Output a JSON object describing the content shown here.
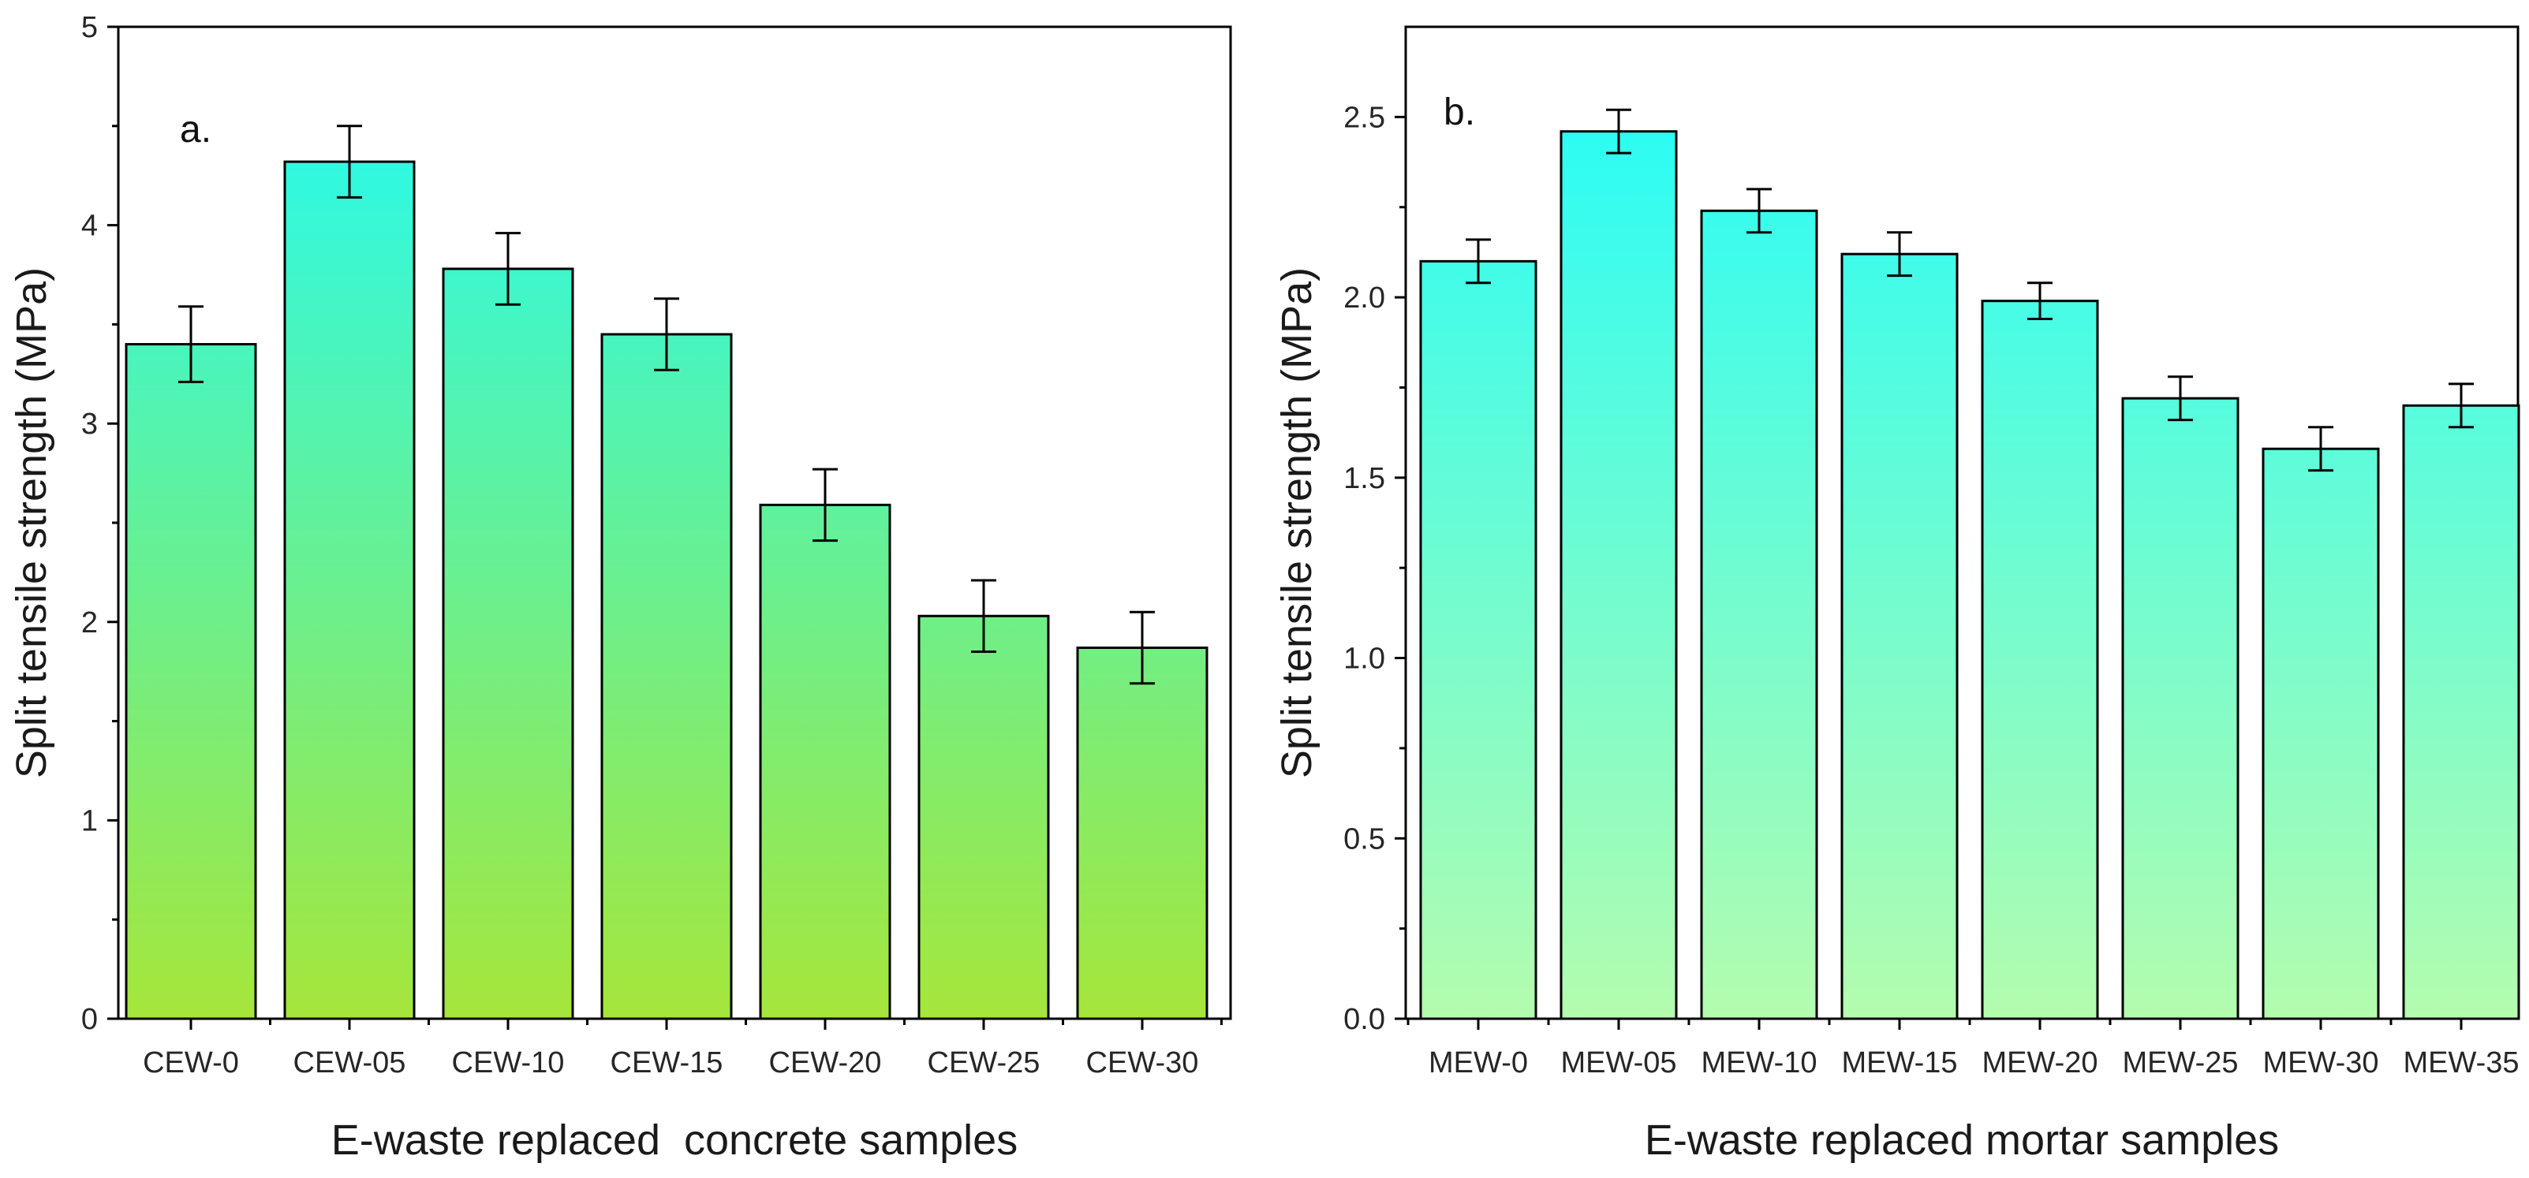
{
  "chart_data": [
    {
      "type": "bar",
      "panel_label": "a.",
      "categories": [
        "CEW-0",
        "CEW-05",
        "CEW-10",
        "CEW-15",
        "CEW-20",
        "CEW-25",
        "CEW-30"
      ],
      "values": [
        3.4,
        4.32,
        3.78,
        3.45,
        2.59,
        2.03,
        1.87
      ],
      "errors": [
        0.19,
        0.18,
        0.18,
        0.18,
        0.18,
        0.18,
        0.18
      ],
      "xlabel": "E-waste replaced  concrete samples",
      "ylabel": "Split tensile strength (MPa)",
      "ylim": [
        0,
        5
      ],
      "yticks": [
        "0",
        "1",
        "2",
        "3",
        "4",
        "5"
      ],
      "ytick_values": [
        0,
        1,
        2,
        3,
        4,
        5
      ],
      "bar_gradient": {
        "top": "#1dfcfc",
        "bottom": "#a6e63a"
      }
    },
    {
      "type": "bar",
      "panel_label": "b.",
      "categories": [
        "MEW-0",
        "MEW-05",
        "MEW-10",
        "MEW-15",
        "MEW-20",
        "MEW-25",
        "MEW-30",
        "MEW-35"
      ],
      "values": [
        2.1,
        2.46,
        2.24,
        2.12,
        1.99,
        1.72,
        1.58,
        1.7
      ],
      "errors": [
        0.06,
        0.06,
        0.06,
        0.06,
        0.05,
        0.06,
        0.06,
        0.06
      ],
      "xlabel": "E-waste replaced mortar samples",
      "ylabel": "Split tensile strength (MPa)",
      "ylim": [
        0,
        2.75
      ],
      "yticks": [
        "0.0",
        "0.5",
        "1.0",
        "1.5",
        "2.0",
        "2.5"
      ],
      "ytick_values": [
        0,
        0.5,
        1,
        1.5,
        2,
        2.5
      ],
      "bar_gradient": {
        "top": "#1dfcfc",
        "bottom": "#b4fcae"
      }
    }
  ]
}
